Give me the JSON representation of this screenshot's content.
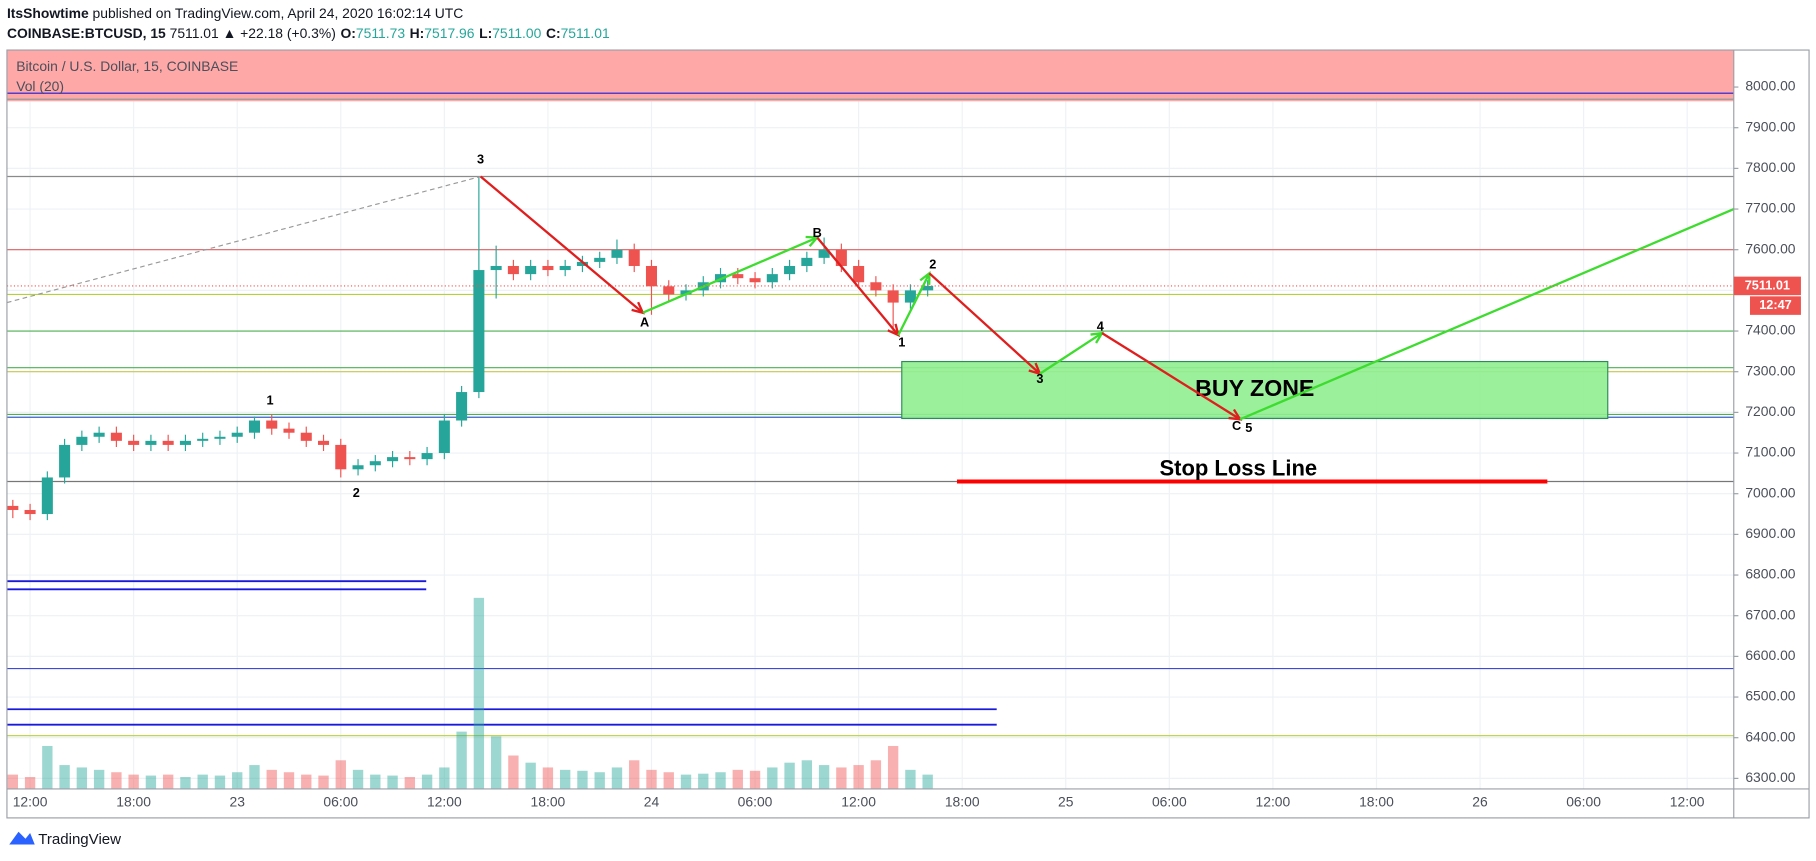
{
  "header": {
    "author": "ItsShowtime",
    "published": "published on TradingView.com, April 24, 2020 16:02:14 UTC",
    "symbol": "COINBASE:BTCUSD, 15",
    "last": "7511.01",
    "change": "▲ +22.18 (+0.3%)",
    "ohlc": [
      {
        "label": "O:",
        "value": "7511.73"
      },
      {
        "label": "H:",
        "value": "7517.96"
      },
      {
        "label": "L:",
        "value": "7511.00"
      },
      {
        "label": "C:",
        "value": "7511.01"
      }
    ]
  },
  "footer": {
    "brand": "TradingView"
  },
  "chart_data": {
    "type": "candlestick",
    "title": "Bitcoin / U.S. Dollar, 15, COINBASE",
    "volume_label": "Vol (20)",
    "up_color": "#26a69a",
    "down_color": "#ef5350",
    "grid": true,
    "xlim": [
      10.66,
      110.7
    ],
    "ylim": [
      6274,
      8091
    ],
    "xticks": [
      {
        "value": 12,
        "label": "12:00"
      },
      {
        "value": 18,
        "label": "18:00"
      },
      {
        "value": 24,
        "label": "23"
      },
      {
        "value": 30,
        "label": "06:00"
      },
      {
        "value": 36,
        "label": "12:00"
      },
      {
        "value": 42,
        "label": "18:00"
      },
      {
        "value": 48,
        "label": "24"
      },
      {
        "value": 54,
        "label": "06:00"
      },
      {
        "value": 60,
        "label": "12:00"
      },
      {
        "value": 66,
        "label": "18:00"
      },
      {
        "value": 72,
        "label": "25"
      },
      {
        "value": 78,
        "label": "06:00"
      },
      {
        "value": 84,
        "label": "12:00"
      },
      {
        "value": 90,
        "label": "18:00"
      },
      {
        "value": 96,
        "label": "26"
      },
      {
        "value": 102,
        "label": "06:00"
      },
      {
        "value": 108,
        "label": "12:00"
      }
    ],
    "yticks": [
      {
        "value": 8000,
        "label": "8000.00"
      },
      {
        "value": 7900,
        "label": "7900.00"
      },
      {
        "value": 7800,
        "label": "7800.00"
      },
      {
        "value": 7700,
        "label": "7700.00"
      },
      {
        "value": 7600,
        "label": "7600.00"
      },
      {
        "value": 7500,
        "label": "7500.00"
      },
      {
        "value": 7400,
        "label": "7400.00"
      },
      {
        "value": 7300,
        "label": "7300.00"
      },
      {
        "value": 7200,
        "label": "7200.00"
      },
      {
        "value": 7100,
        "label": "7100.00"
      },
      {
        "value": 7000,
        "label": "7000.00"
      },
      {
        "value": 6900,
        "label": "6900.00"
      },
      {
        "value": 6800,
        "label": "6800.00"
      },
      {
        "value": 6700,
        "label": "6700.00"
      },
      {
        "value": 6600,
        "label": "6600.00"
      },
      {
        "value": 6500,
        "label": "6500.00"
      },
      {
        "value": 6400,
        "label": "6400.00"
      },
      {
        "value": 6300,
        "label": "6300.00"
      }
    ],
    "x": [
      11,
      12,
      13,
      14,
      15,
      16,
      17,
      18,
      19,
      20,
      21,
      22,
      23,
      24,
      25,
      26,
      27,
      28,
      29,
      30,
      31,
      32,
      33,
      34,
      35,
      36,
      37,
      38,
      39,
      40,
      41,
      42,
      43,
      44,
      45,
      46,
      47,
      48,
      49,
      50,
      51,
      52,
      53,
      54,
      55,
      56,
      57,
      58,
      59,
      60,
      61,
      62,
      63,
      64
    ],
    "open": [
      6970,
      6960,
      6950,
      7040,
      7120,
      7140,
      7150,
      7130,
      7120,
      7130,
      7120,
      7130,
      7135,
      7140,
      7150,
      7180,
      7160,
      7150,
      7130,
      7120,
      7060,
      7070,
      7080,
      7090,
      7085,
      7100,
      7180,
      7250,
      7550,
      7560,
      7540,
      7560,
      7550,
      7560,
      7570,
      7580,
      7600,
      7560,
      7510,
      7490,
      7500,
      7520,
      7540,
      7530,
      7520,
      7540,
      7560,
      7580,
      7600,
      7560,
      7520,
      7500,
      7470,
      7500
    ],
    "high": [
      6985,
      6975,
      7055,
      7135,
      7155,
      7165,
      7165,
      7145,
      7145,
      7145,
      7145,
      7150,
      7155,
      7165,
      7190,
      7195,
      7175,
      7165,
      7145,
      7135,
      7085,
      7095,
      7105,
      7105,
      7115,
      7195,
      7265,
      7780,
      7610,
      7575,
      7575,
      7575,
      7575,
      7585,
      7595,
      7625,
      7615,
      7575,
      7525,
      7515,
      7535,
      7555,
      7555,
      7545,
      7555,
      7575,
      7595,
      7630,
      7615,
      7575,
      7535,
      7515,
      7515,
      7525
    ],
    "low": [
      6940,
      6935,
      6935,
      7025,
      7105,
      7125,
      7115,
      7105,
      7105,
      7105,
      7105,
      7115,
      7120,
      7125,
      7135,
      7145,
      7135,
      7115,
      7105,
      7040,
      7045,
      7055,
      7065,
      7070,
      7070,
      7085,
      7165,
      7235,
      7480,
      7525,
      7525,
      7535,
      7535,
      7545,
      7555,
      7565,
      7545,
      7440,
      7475,
      7475,
      7485,
      7505,
      7515,
      7505,
      7505,
      7525,
      7545,
      7565,
      7545,
      7505,
      7485,
      7400,
      7455,
      7485
    ],
    "close": [
      6960,
      6950,
      7040,
      7120,
      7140,
      7150,
      7130,
      7120,
      7130,
      7120,
      7130,
      7135,
      7140,
      7150,
      7180,
      7160,
      7150,
      7130,
      7120,
      7060,
      7070,
      7080,
      7090,
      7085,
      7100,
      7180,
      7250,
      7550,
      7560,
      7540,
      7560,
      7550,
      7560,
      7570,
      7580,
      7600,
      7560,
      7510,
      7490,
      7500,
      7520,
      7540,
      7530,
      7520,
      7540,
      7560,
      7580,
      7600,
      7560,
      7520,
      7500,
      7470,
      7500,
      7511.01
    ],
    "volume": [
      30,
      25,
      90,
      50,
      45,
      40,
      35,
      30,
      28,
      30,
      25,
      30,
      28,
      35,
      50,
      40,
      35,
      30,
      28,
      60,
      40,
      30,
      28,
      25,
      30,
      45,
      120,
      400,
      110,
      70,
      55,
      45,
      40,
      38,
      35,
      45,
      60,
      40,
      35,
      30,
      32,
      35,
      40,
      38,
      45,
      55,
      60,
      50,
      45,
      50,
      60,
      90,
      40,
      30
    ],
    "bands": [
      {
        "y": [
          7965,
          8091
        ],
        "color": "#ffa8a8"
      }
    ],
    "levels": [
      {
        "value": 7985,
        "color": "#1a1adb"
      },
      {
        "value": 7970,
        "color": "#999999"
      },
      {
        "value": 7780,
        "color": "#8a8a8a"
      },
      {
        "value": 7600,
        "color": "#e06060"
      },
      {
        "value": 7490,
        "color": "#b5d13a"
      },
      {
        "value": 7400,
        "color": "#4caf50"
      },
      {
        "value": 7310,
        "color": "#4caf50"
      },
      {
        "value": 7300,
        "color": "#c8c850"
      },
      {
        "value": 7195,
        "color": "#4caf50"
      },
      {
        "value": 7188,
        "color": "#3a5fcd"
      },
      {
        "value": 7030,
        "color": "#777777"
      },
      {
        "value": 6785,
        "color": "#1a1adb",
        "xmax": 34.95
      },
      {
        "value": 6765,
        "color": "#1a1adb",
        "xmax": 34.95
      },
      {
        "value": 6570,
        "color": "#3d4bd6"
      },
      {
        "value": 6470,
        "color": "#1a1adb",
        "xmax": 68
      },
      {
        "value": 6432,
        "color": "#1a1adb",
        "xmax": 68
      },
      {
        "value": 6405,
        "color": "#b5d13a"
      }
    ],
    "trend_lines": [
      {
        "color": "#999999",
        "style": "dashed",
        "x": [
          10.66,
          38.1
        ],
        "y": [
          7470,
          7780
        ]
      },
      {
        "color": "#e01e1e",
        "arrow": true,
        "x": [
          38.1,
          47.5
        ],
        "y": [
          7780,
          7445
        ]
      },
      {
        "color": "#3ddc2e",
        "arrow": true,
        "x": [
          47.5,
          57.6
        ],
        "y": [
          7445,
          7630
        ]
      },
      {
        "color": "#e01e1e",
        "arrow": true,
        "x": [
          57.6,
          62.3
        ],
        "y": [
          7630,
          7390
        ]
      },
      {
        "color": "#3ddc2e",
        "arrow": true,
        "x": [
          62.3,
          64.1
        ],
        "y": [
          7390,
          7542
        ]
      },
      {
        "color": "#e01e1e",
        "arrow": true,
        "x": [
          64.1,
          70.5
        ],
        "y": [
          7542,
          7295
        ]
      },
      {
        "color": "#3ddc2e",
        "arrow": true,
        "x": [
          70.5,
          74.1
        ],
        "y": [
          7295,
          7395
        ]
      },
      {
        "color": "#e01e1e",
        "arrow": true,
        "x": [
          74.1,
          82.1
        ],
        "y": [
          7395,
          7183
        ]
      },
      {
        "color": "#3ddc2e",
        "x": [
          82.1,
          110.7
        ],
        "y": [
          7183,
          7700
        ]
      }
    ],
    "wave_labels": [
      {
        "text": "3",
        "x": 38.1,
        "y": 7820
      },
      {
        "text": "1",
        "x": 25.9,
        "y": 7228
      },
      {
        "text": "2",
        "x": 30.9,
        "y": 7000
      },
      {
        "text": "A",
        "x": 47.6,
        "y": 7420
      },
      {
        "text": "B",
        "x": 57.6,
        "y": 7640
      },
      {
        "text": "1",
        "x": 62.5,
        "y": 7370
      },
      {
        "text": "2",
        "x": 64.3,
        "y": 7562
      },
      {
        "text": "3",
        "x": 70.5,
        "y": 7280
      },
      {
        "text": "4",
        "x": 74.0,
        "y": 7410
      },
      {
        "text": "C",
        "x": 81.9,
        "y": 7165
      },
      {
        "text": "5",
        "x": 82.6,
        "y": 7160
      }
    ],
    "zone": {
      "label": "BUY ZONE",
      "x": [
        62.5,
        103.4
      ],
      "y": [
        7185,
        7325
      ],
      "color": "#90ee90"
    },
    "stop_loss": {
      "label": "Stop Loss Line",
      "value": 7030,
      "x": [
        65.7,
        99.9
      ],
      "color": "#ff0000"
    },
    "last_price": 7511.01,
    "countdown": "12:47"
  }
}
